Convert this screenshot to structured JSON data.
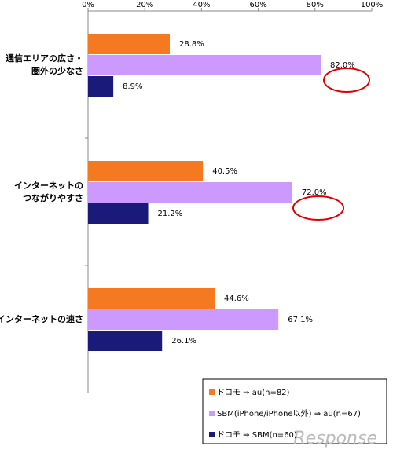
{
  "chart_data": {
    "type": "bar",
    "orientation": "horizontal",
    "categories": [
      "通信エリアの広さ・\n圏外の少なさ",
      "インターネットの\nつながりやすさ",
      "インターネットの速さ"
    ],
    "series": [
      {
        "name": "ドコモ ⇒ au(n=82)",
        "color": "#f47920",
        "values": [
          28.8,
          40.5,
          44.6
        ],
        "value_labels": [
          "28.8%",
          "40.5%",
          "44.6%"
        ]
      },
      {
        "name": "SBM(iPhone/iPhone以外) ⇒ au(n=67)",
        "color": "#cc99ff",
        "values": [
          82.0,
          72.0,
          67.1
        ],
        "value_labels": [
          "82.0%",
          "72.0%",
          "67.1%"
        ]
      },
      {
        "name": "ドコモ ⇒ SBM(n=60)",
        "color": "#1a1a7a",
        "values": [
          8.9,
          21.2,
          26.1
        ],
        "value_labels": [
          "8.9%",
          "21.2%",
          "26.1%"
        ]
      }
    ],
    "xlim": [
      0,
      100
    ],
    "xticks": [
      {
        "value": 0,
        "label": "0%"
      },
      {
        "value": 20,
        "label": "20%"
      },
      {
        "value": 40,
        "label": "40%"
      },
      {
        "value": 60,
        "label": "60%"
      },
      {
        "value": 80,
        "label": "80%"
      },
      {
        "value": 100,
        "label": "100%"
      }
    ],
    "legend": "bottom-right",
    "watermark": "Response"
  }
}
